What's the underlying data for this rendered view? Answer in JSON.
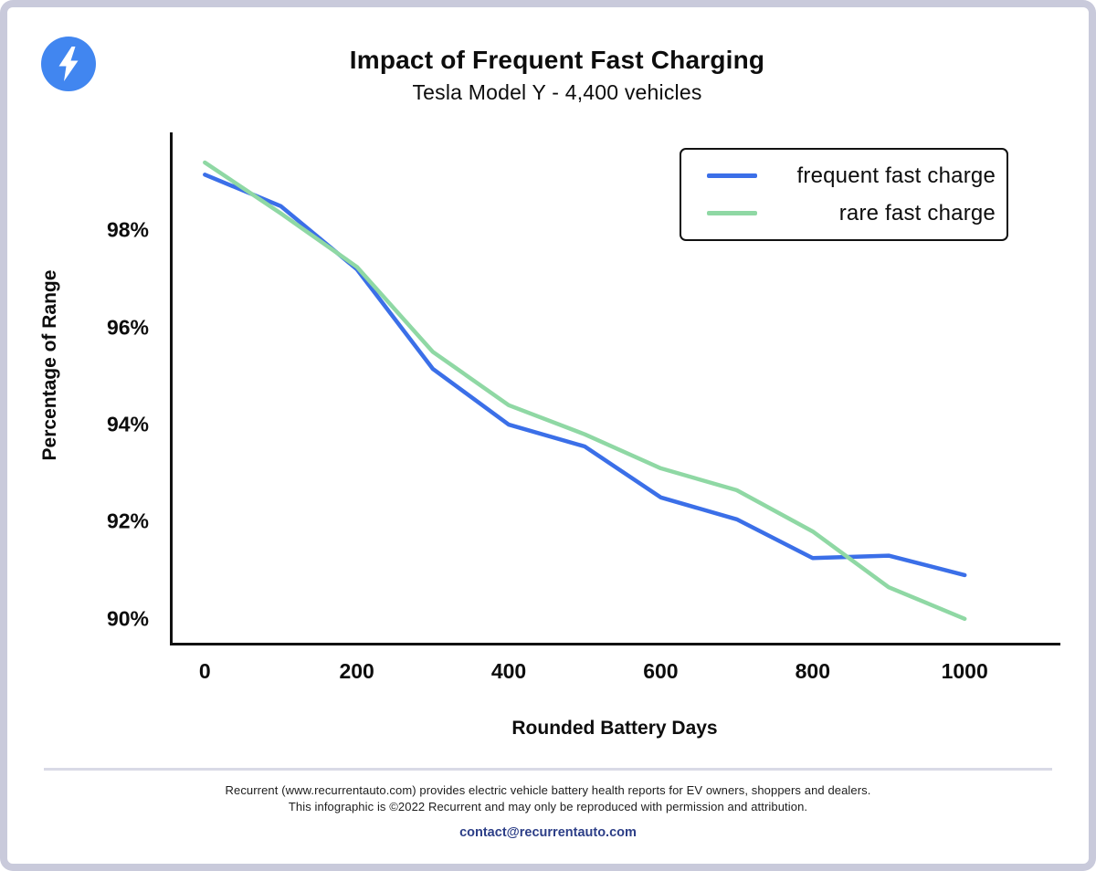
{
  "logo": {
    "icon": "lightning-icon",
    "circle_color": "#4186f0",
    "bolt_color": "#ffffff"
  },
  "header": {
    "title": "Impact of Frequent Fast Charging",
    "subtitle": "Tesla Model Y - 4,400 vehicles"
  },
  "chart_data": {
    "type": "line",
    "title": "Impact of Frequent Fast Charging",
    "subtitle": "Tesla Model Y - 4,400 vehicles",
    "xlabel": "Rounded Battery Days",
    "ylabel": "Percentage of Range",
    "x": [
      0,
      100,
      200,
      300,
      400,
      500,
      600,
      700,
      800,
      900,
      1000
    ],
    "series": [
      {
        "name": "frequent fast charge",
        "color": "#3b6fe8",
        "values": [
          99.15,
          98.5,
          97.2,
          95.15,
          94.0,
          93.55,
          92.5,
          92.05,
          91.25,
          91.3,
          90.9
        ]
      },
      {
        "name": "rare fast charge",
        "color": "#8fd8a4",
        "values": [
          99.4,
          98.35,
          97.25,
          95.5,
          94.4,
          93.8,
          93.1,
          92.65,
          91.8,
          90.65,
          90.0
        ]
      }
    ],
    "xticks": [
      {
        "label": "0",
        "value": 0
      },
      {
        "label": "200",
        "value": 200
      },
      {
        "label": "400",
        "value": 400
      },
      {
        "label": "600",
        "value": 600
      },
      {
        "label": "800",
        "value": 800
      },
      {
        "label": "1000",
        "value": 1000
      }
    ],
    "yticks": [
      {
        "label": "98%",
        "value": 98
      },
      {
        "label": "96%",
        "value": 96
      },
      {
        "label": "94%",
        "value": 94
      },
      {
        "label": "92%",
        "value": 92
      },
      {
        "label": "90%",
        "value": 90
      }
    ],
    "xlim": [
      -46,
      1126
    ],
    "ylim": [
      89.45,
      100.02
    ],
    "grid": false,
    "axis_color": "#111111",
    "legend_position": "top-right"
  },
  "legend": {
    "items": [
      {
        "label": "frequent fast charge",
        "color": "#3b6fe8"
      },
      {
        "label": "rare fast charge",
        "color": "#8fd8a4"
      }
    ]
  },
  "footer": {
    "line1": "Recurrent (www.recurrentauto.com) provides electric vehicle battery health reports for EV owners, shoppers and dealers.",
    "line2": "This infographic is ©2022 Recurrent and may only be reproduced with permission and attribution.",
    "contact": "contact@recurrentauto.com"
  }
}
